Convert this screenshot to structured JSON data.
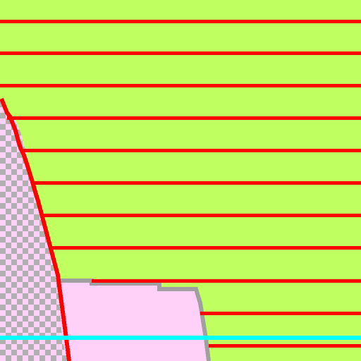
{
  "canvas": {
    "name": "pixel-canvas",
    "fill_color": "#c0ff60",
    "guide_color": "#ff0000",
    "transparent_checker_light": "#ffd0f8",
    "transparent_checker_dark": "#b0b0b0",
    "selection_outline_color": "#a0a0a0",
    "selection_fill_color": "#ffd0f8",
    "highlight_color": "#00ffff"
  },
  "elements": {
    "guide_lines_count": 11,
    "selection_region": "pink-shape",
    "highlight_line": "cyan-line"
  }
}
